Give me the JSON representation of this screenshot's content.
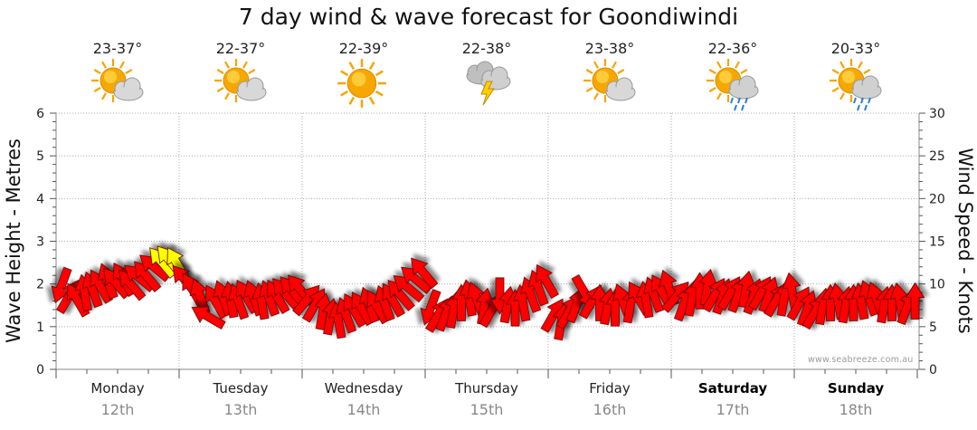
{
  "chart_data": {
    "type": "scatter",
    "title": "7 day wind & wave forecast for Goondiwindi",
    "ylabel_left": "Wave Height - Metres",
    "ylabel_right": "Wind Speed - Knots",
    "y_left_range": [
      0,
      6
    ],
    "y_left_ticks": [
      "0",
      "1",
      "2",
      "3",
      "4",
      "5",
      "6"
    ],
    "y_right_range": [
      0,
      30
    ],
    "y_right_ticks": [
      "0",
      "5",
      "10",
      "15",
      "20",
      "25",
      "30"
    ],
    "grid": true,
    "days": [
      {
        "name": "Monday",
        "date": "12th",
        "temp": "23-37°",
        "icon": "partly-cloudy-icon",
        "weekend": false
      },
      {
        "name": "Tuesday",
        "date": "13th",
        "temp": "22-37°",
        "icon": "partly-cloudy-icon",
        "weekend": false
      },
      {
        "name": "Wednesday",
        "date": "14th",
        "temp": "22-39°",
        "icon": "sunny-icon",
        "weekend": false
      },
      {
        "name": "Thursday",
        "date": "15th",
        "temp": "22-38°",
        "icon": "thunderstorm-icon",
        "weekend": false
      },
      {
        "name": "Friday",
        "date": "16th",
        "temp": "23-38°",
        "icon": "partly-cloudy-icon",
        "weekend": false
      },
      {
        "name": "Saturday",
        "date": "17th",
        "temp": "22-36°",
        "icon": "showers-icon",
        "weekend": true
      },
      {
        "name": "Sunday",
        "date": "18th",
        "temp": "20-33°",
        "icon": "showers-icon",
        "weekend": true
      }
    ],
    "wind_series": {
      "name": "",
      "marker": "arrow",
      "color_default": "#ff0000",
      "color_strong": "#ffff00",
      "points_per_day": 16,
      "speed_knots": [
        9.8,
        8.6,
        8.2,
        9.0,
        9.4,
        9.8,
        10.4,
        10.2,
        10.6,
        10.0,
        10.8,
        11.0,
        12.0,
        12.6,
        12.8,
        12.4,
        10.5,
        9.4,
        8.6,
        6.2,
        8.0,
        8.4,
        8.2,
        8.0,
        8.6,
        8.4,
        8.0,
        8.4,
        8.6,
        9.0,
        9.2,
        9.4,
        8.2,
        7.6,
        6.8,
        6.2,
        5.8,
        6.4,
        7.0,
        7.2,
        7.6,
        7.4,
        7.8,
        8.2,
        8.8,
        9.6,
        10.6,
        11.4,
        7.2,
        6.4,
        6.6,
        7.0,
        7.8,
        8.4,
        8.2,
        7.4,
        7.0,
        8.6,
        7.6,
        7.2,
        7.8,
        8.8,
        9.6,
        10.4,
        6.4,
        5.6,
        6.8,
        7.6,
        9.0,
        8.0,
        7.8,
        7.4,
        7.2,
        8.0,
        7.6,
        8.4,
        8.2,
        8.8,
        9.2,
        9.6,
        8.6,
        7.8,
        8.4,
        9.2,
        9.6,
        8.8,
        8.6,
        9.0,
        8.8,
        9.4,
        8.6,
        9.0,
        8.8,
        8.2,
        8.4,
        9.2,
        7.8,
        7.2,
        6.8,
        7.4,
        7.8,
        8.0,
        7.6,
        7.8,
        8.0,
        8.4,
        8.2,
        7.6,
        7.8,
        8.0,
        7.4,
        8.0
      ],
      "direction_deg": [
        110,
        300,
        240,
        260,
        250,
        240,
        250,
        230,
        240,
        230,
        220,
        230,
        220,
        230,
        230,
        240,
        230,
        240,
        250,
        210,
        240,
        250,
        260,
        250,
        240,
        250,
        260,
        250,
        240,
        230,
        230,
        230,
        310,
        300,
        280,
        280,
        260,
        250,
        240,
        240,
        250,
        240,
        250,
        240,
        230,
        220,
        220,
        230,
        110,
        300,
        290,
        280,
        270,
        260,
        250,
        280,
        300,
        90,
        280,
        270,
        260,
        250,
        250,
        240,
        300,
        280,
        300,
        290,
        60,
        300,
        270,
        280,
        270,
        250,
        280,
        240,
        260,
        250,
        240,
        250,
        310,
        290,
        280,
        270,
        280,
        300,
        290,
        300,
        290,
        280,
        290,
        300,
        290,
        300,
        280,
        260,
        300,
        290,
        300,
        280,
        270,
        260,
        280,
        270,
        260,
        250,
        250,
        280,
        270,
        260,
        290,
        270
      ]
    }
  },
  "watermark": "www.seabreeze.com.au"
}
